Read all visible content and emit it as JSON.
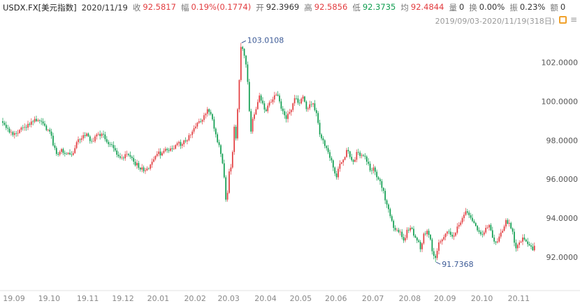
{
  "header": {
    "symbol": "USDX.FX[美元指数]",
    "date": "2020/11/19",
    "fields": [
      {
        "label": "收",
        "value": "92.5817",
        "tone": "up"
      },
      {
        "label": "幅",
        "value": "0.19%(0.1774)",
        "tone": "up"
      },
      {
        "label": "开",
        "value": "92.3969",
        "tone": "neutral"
      },
      {
        "label": "高",
        "value": "92.5856",
        "tone": "up"
      },
      {
        "label": "低",
        "value": "92.3735",
        "tone": "down"
      },
      {
        "label": "均",
        "value": "92.4844",
        "tone": "up"
      },
      {
        "label": "量",
        "value": "0",
        "tone": "neutral"
      },
      {
        "label": "换",
        "value": "0.00%",
        "tone": "neutral"
      },
      {
        "label": "振",
        "value": "0.23%",
        "tone": "neutral"
      },
      {
        "label": "额",
        "value": "0",
        "tone": "neutral"
      }
    ],
    "range_text": "2019/09/03-2020/11/19(318日)",
    "icons": [
      "highlighter-icon",
      "menu-icon"
    ]
  },
  "colors": {
    "up": "#e23b3e",
    "down": "#0f9d4f",
    "neutral": "#333333",
    "annotation": "#3c5a96",
    "axis_text": "#555555",
    "xlabel_text": "#888888",
    "grid_line": "#e2e2e2",
    "icon_accent": "#f0a12b",
    "icon_gray": "#9a9a9a"
  },
  "chart_data": {
    "type": "candlestick",
    "title": "USDX.FX[美元指数]",
    "period_range": "2019/09/03-2020/11/19",
    "days": 318,
    "ylim": [
      91.35,
      103.35
    ],
    "y_ticks": [
      {
        "value": 102,
        "label": "102.0000"
      },
      {
        "value": 100,
        "label": "100.0000"
      },
      {
        "value": 98,
        "label": "98.0000"
      },
      {
        "value": 96,
        "label": "96.0000"
      },
      {
        "value": 94,
        "label": "94.0000"
      },
      {
        "value": 92,
        "label": "92.0000"
      }
    ],
    "x_labels": [
      {
        "day": 0,
        "label": "19.09"
      },
      {
        "day": 21,
        "label": "19.10"
      },
      {
        "day": 44,
        "label": "19.11"
      },
      {
        "day": 65,
        "label": "19.12"
      },
      {
        "day": 86,
        "label": "20.01"
      },
      {
        "day": 108,
        "label": "20.02"
      },
      {
        "day": 128,
        "label": "20.03"
      },
      {
        "day": 150,
        "label": "20.04"
      },
      {
        "day": 171,
        "label": "20.05"
      },
      {
        "day": 192,
        "label": "20.06"
      },
      {
        "day": 214,
        "label": "20.07"
      },
      {
        "day": 236,
        "label": "20.08"
      },
      {
        "day": 257,
        "label": "20.09"
      },
      {
        "day": 279,
        "label": "20.10"
      },
      {
        "day": 301,
        "label": "20.11"
      }
    ],
    "peak": {
      "day": 142,
      "value": 103.0108,
      "label": "103.0108"
    },
    "trough": {
      "day": 258,
      "value": 91.7368,
      "label": "91.7368"
    },
    "last_close": 92.5817,
    "close_waypoints": [
      [
        0,
        98.9
      ],
      [
        4,
        98.4
      ],
      [
        8,
        98.35
      ],
      [
        12,
        98.65
      ],
      [
        16,
        98.8
      ],
      [
        19,
        99.1
      ],
      [
        22,
        99.0
      ],
      [
        25,
        98.75
      ],
      [
        28,
        98.45
      ],
      [
        32,
        97.3
      ],
      [
        35,
        97.55
      ],
      [
        38,
        97.3
      ],
      [
        41,
        97.25
      ],
      [
        44,
        97.9
      ],
      [
        47,
        98.1
      ],
      [
        50,
        98.35
      ],
      [
        53,
        97.95
      ],
      [
        56,
        98.3
      ],
      [
        60,
        98.3
      ],
      [
        63,
        97.8
      ],
      [
        66,
        97.6
      ],
      [
        70,
        97.1
      ],
      [
        74,
        97.3
      ],
      [
        78,
        96.9
      ],
      [
        82,
        96.5
      ],
      [
        86,
        96.55
      ],
      [
        89,
        96.9
      ],
      [
        92,
        97.3
      ],
      [
        95,
        97.35
      ],
      [
        98,
        97.5
      ],
      [
        101,
        97.55
      ],
      [
        104,
        97.85
      ],
      [
        107,
        97.8
      ],
      [
        110,
        98.0
      ],
      [
        113,
        98.45
      ],
      [
        116,
        98.9
      ],
      [
        119,
        99.05
      ],
      [
        122,
        99.6
      ],
      [
        124,
        99.35
      ],
      [
        126,
        98.6
      ],
      [
        128,
        97.9
      ],
      [
        130,
        97.3
      ],
      [
        132,
        96.1
      ],
      [
        133,
        94.95
      ],
      [
        134,
        95.3
      ],
      [
        135,
        96.4
      ],
      [
        136,
        96.6
      ],
      [
        137,
        97.4
      ],
      [
        138,
        98.7
      ],
      [
        139,
        98.1
      ],
      [
        140,
        99.6
      ],
      [
        141,
        101.1
      ],
      [
        142,
        102.8
      ],
      [
        143,
        102.7
      ],
      [
        144,
        102.35
      ],
      [
        145,
        101.9
      ],
      [
        146,
        101.0
      ],
      [
        147,
        99.5
      ],
      [
        148,
        98.45
      ],
      [
        149,
        99.1
      ],
      [
        151,
        99.6
      ],
      [
        153,
        100.3
      ],
      [
        155,
        99.9
      ],
      [
        157,
        99.5
      ],
      [
        159,
        99.95
      ],
      [
        161,
        100.1
      ],
      [
        163,
        100.35
      ],
      [
        165,
        100.0
      ],
      [
        167,
        99.5
      ],
      [
        169,
        99.1
      ],
      [
        171,
        99.45
      ],
      [
        173,
        99.9
      ],
      [
        175,
        100.15
      ],
      [
        177,
        99.9
      ],
      [
        179,
        100.25
      ],
      [
        181,
        99.6
      ],
      [
        183,
        99.85
      ],
      [
        185,
        99.9
      ],
      [
        187,
        99.4
      ],
      [
        189,
        98.3
      ],
      [
        191,
        98.0
      ],
      [
        193,
        97.6
      ],
      [
        195,
        97.1
      ],
      [
        197,
        96.6
      ],
      [
        199,
        96.1
      ],
      [
        201,
        96.8
      ],
      [
        203,
        97.0
      ],
      [
        205,
        97.5
      ],
      [
        207,
        97.15
      ],
      [
        209,
        96.9
      ],
      [
        211,
        97.4
      ],
      [
        213,
        97.2
      ],
      [
        215,
        97.2
      ],
      [
        217,
        96.9
      ],
      [
        219,
        96.45
      ],
      [
        221,
        96.6
      ],
      [
        223,
        96.1
      ],
      [
        225,
        95.9
      ],
      [
        227,
        95.4
      ],
      [
        229,
        94.7
      ],
      [
        231,
        94.1
      ],
      [
        233,
        93.5
      ],
      [
        235,
        93.4
      ],
      [
        237,
        93.3
      ],
      [
        239,
        92.85
      ],
      [
        241,
        93.4
      ],
      [
        243,
        93.5
      ],
      [
        245,
        93.1
      ],
      [
        247,
        92.85
      ],
      [
        249,
        92.4
      ],
      [
        251,
        93.2
      ],
      [
        253,
        93.35
      ],
      [
        255,
        92.9
      ],
      [
        256,
        92.3
      ],
      [
        258,
        91.95
      ],
      [
        260,
        92.75
      ],
      [
        262,
        92.9
      ],
      [
        264,
        93.2
      ],
      [
        266,
        93.3
      ],
      [
        268,
        93.05
      ],
      [
        270,
        93.25
      ],
      [
        272,
        93.65
      ],
      [
        274,
        94.0
      ],
      [
        276,
        94.35
      ],
      [
        278,
        94.15
      ],
      [
        280,
        93.85
      ],
      [
        282,
        93.6
      ],
      [
        284,
        93.3
      ],
      [
        286,
        93.15
      ],
      [
        288,
        93.5
      ],
      [
        290,
        93.65
      ],
      [
        292,
        93.0
      ],
      [
        294,
        92.75
      ],
      [
        296,
        93.05
      ],
      [
        298,
        93.35
      ],
      [
        300,
        93.9
      ],
      [
        302,
        93.75
      ],
      [
        304,
        93.3
      ],
      [
        306,
        92.45
      ],
      [
        308,
        92.75
      ],
      [
        310,
        93.0
      ],
      [
        312,
        92.8
      ],
      [
        314,
        92.6
      ],
      [
        316,
        92.35
      ],
      [
        317,
        92.58
      ]
    ]
  }
}
